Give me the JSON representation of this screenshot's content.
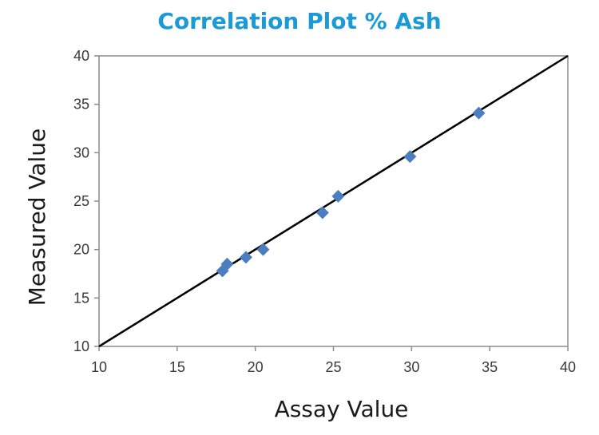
{
  "chart_data": {
    "type": "scatter",
    "title": "Correlation Plot % Ash",
    "xlabel": "Assay Value",
    "ylabel": "Measured Value",
    "xlim": [
      10,
      40
    ],
    "ylim": [
      10,
      40
    ],
    "xticks": [
      "10",
      "15",
      "20",
      "25",
      "30",
      "35",
      "40"
    ],
    "yticks": [
      "10",
      "15",
      "20",
      "25",
      "30",
      "35",
      "40"
    ],
    "grid": false,
    "reference_line": {
      "from": [
        10,
        10
      ],
      "to": [
        40,
        40
      ],
      "color": "#000000"
    },
    "series": [
      {
        "marker": "diamond",
        "color": "#4a7ebf",
        "points": [
          {
            "x": 17.9,
            "y": 17.8
          },
          {
            "x": 18.2,
            "y": 18.5
          },
          {
            "x": 19.4,
            "y": 19.2
          },
          {
            "x": 20.5,
            "y": 20.0
          },
          {
            "x": 24.3,
            "y": 23.8
          },
          {
            "x": 25.3,
            "y": 25.5
          },
          {
            "x": 29.9,
            "y": 29.6
          },
          {
            "x": 34.3,
            "y": 34.1
          }
        ]
      }
    ]
  },
  "colors": {
    "title": "#1a9ad6",
    "frame": "#8c8c8c",
    "line": "#000000",
    "marker": "#4a7ebf"
  }
}
